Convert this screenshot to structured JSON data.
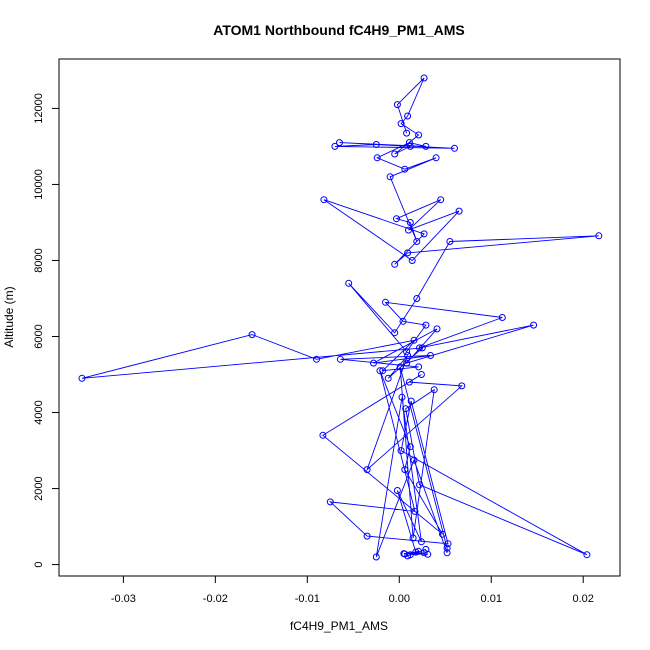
{
  "chart_data": {
    "type": "line",
    "title": "ATOM1 Northbound fC4H9_PM1_AMS",
    "xlabel": "fC4H9_PM1_AMS",
    "ylabel": "Altitude (m)",
    "xlim": [
      -0.037,
      0.024
    ],
    "ylim": [
      -300,
      13300
    ],
    "xticks": [
      -0.03,
      -0.02,
      -0.01,
      0.0,
      0.01,
      0.02
    ],
    "xtick_labels": [
      "-0.03",
      "-0.02",
      "-0.01",
      "0.00",
      "0.01",
      "0.02"
    ],
    "yticks": [
      0,
      2000,
      4000,
      6000,
      8000,
      10000,
      12000
    ],
    "ytick_labels": [
      "0",
      "2000",
      "4000",
      "6000",
      "8000",
      "10000",
      "12000"
    ],
    "grid": false,
    "marker": "open-circle",
    "series_color": "#0000ff",
    "series": [
      {
        "x": [
          0.0006,
          0.0021,
          0.0009,
          0.0029,
          0.0012,
          0.0027,
          0.0005,
          0.0031,
          0.0018,
          -0.0002,
          0.0024,
          0.0003,
          -0.0025,
          0.0016,
          0.0052,
          0.0052,
          0.0001,
          0.0015,
          0.0038,
          0.0007,
          0.0022,
          0.0204,
          0.0002,
          0.0013,
          0.0053,
          -0.0035,
          -0.0075,
          0.0017,
          -0.0021,
          0.0012,
          0.0006,
          0.0047,
          -0.0083,
          0.0024,
          0.0011,
          0.0068,
          -0.0035,
          0.0009,
          -0.0012,
          0.0025,
          -0.0345,
          -0.016,
          -0.009,
          0.0016,
          -0.0018,
          0.0021,
          -0.0064,
          0.0034,
          -0.0028,
          0.0041,
          0.0008,
          0.0146,
          0.0022,
          0.0112,
          -0.0015,
          0.0004,
          0.0029,
          0.0008,
          -0.0055,
          -0.0005,
          0.0019,
          0.0055,
          0.0217,
          0.0009,
          -0.0005,
          0.0027,
          -0.0082,
          0.0014,
          0.0065,
          0.001,
          0.0045,
          -0.0003,
          0.0012,
          0.0019,
          -0.001,
          0.004,
          0.0006,
          -0.0024,
          0.0011,
          0.0029,
          -0.0065,
          0.006,
          -0.007,
          -0.0025,
          0.0012,
          -0.0005,
          0.0021,
          0.0002,
          0.0009,
          0.0027,
          -0.0002,
          0.0008
        ],
        "y": [
          280,
          350,
          230,
          400,
          260,
          310,
          290,
          270,
          330,
          1950,
          600,
          4400,
          200,
          2750,
          310,
          430,
          5200,
          700,
          4600,
          4100,
          2100,
          260,
          3000,
          4300,
          550,
          750,
          1650,
          1400,
          5100,
          3100,
          2500,
          800,
          3400,
          5000,
          4800,
          4700,
          2500,
          5500,
          4900,
          5700,
          4900,
          6050,
          5400,
          5900,
          5100,
          5200,
          5400,
          5500,
          5300,
          6200,
          5300,
          6300,
          5700,
          6500,
          6900,
          6400,
          6300,
          5600,
          7400,
          6100,
          7000,
          8500,
          8650,
          8200,
          7900,
          8700,
          9600,
          8000,
          9300,
          8800,
          9600,
          9100,
          9000,
          8500,
          10200,
          10700,
          10400,
          10700,
          11100,
          11000,
          11100,
          10950,
          11000,
          11050,
          11000,
          10800,
          11300,
          11600,
          11800,
          12800,
          12100,
          11350
        ]
      }
    ]
  }
}
